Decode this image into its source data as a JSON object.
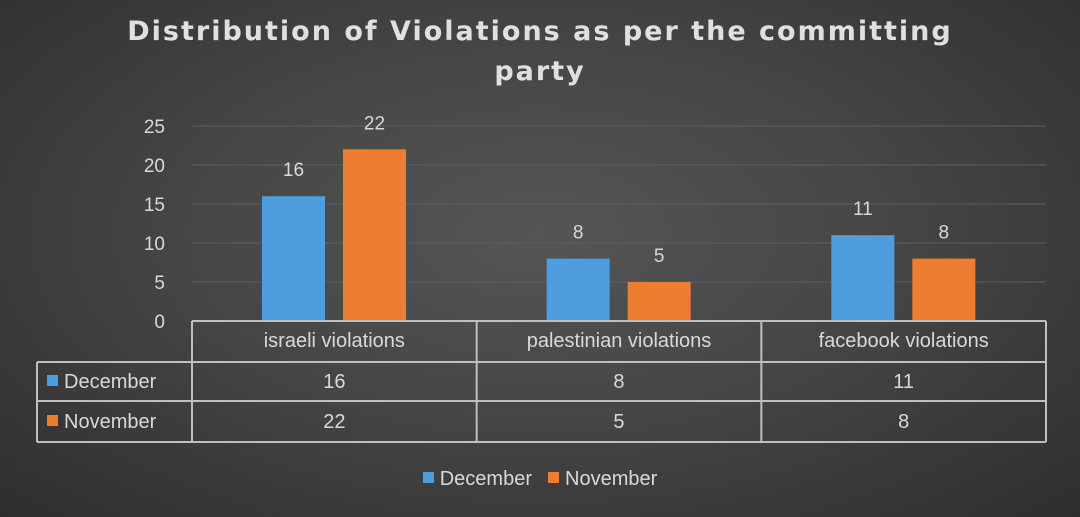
{
  "chart_data": {
    "type": "bar",
    "title_line1": "Distribution of Violations as per the committing",
    "title_line2": "party",
    "categories": [
      "israeli violations",
      "palestinian violations",
      "facebook violations"
    ],
    "series": [
      {
        "name": "December",
        "values": [
          16,
          8,
          11
        ],
        "color": "#4f9ddd"
      },
      {
        "name": "November",
        "values": [
          22,
          5,
          8
        ],
        "color": "#ed7d31"
      }
    ],
    "yticks": [
      "0",
      "5",
      "10",
      "15",
      "20",
      "25"
    ],
    "ylim": [
      0,
      25
    ],
    "grid": true,
    "legend": "bottom",
    "data_table": true
  }
}
